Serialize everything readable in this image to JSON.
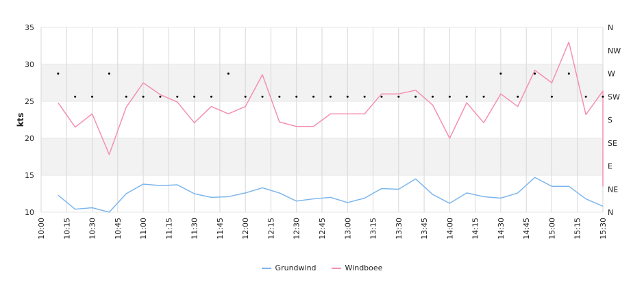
{
  "chart_data": {
    "type": "line",
    "ylabel": "kts",
    "ylim": [
      10,
      35
    ],
    "y_ticks": [
      "10",
      "15",
      "20",
      "25",
      "30",
      "35"
    ],
    "right_axis": {
      "labels": [
        "N",
        "NE",
        "E",
        "SE",
        "S",
        "SW",
        "W",
        "NW",
        "N"
      ],
      "range_degrees": [
        0,
        360
      ]
    },
    "x_labels": [
      "10:00",
      "10:15",
      "10:30",
      "10:45",
      "11:00",
      "11:15",
      "11:30",
      "11:45",
      "12:00",
      "12:15",
      "12:30",
      "12:45",
      "13:00",
      "13:15",
      "13:30",
      "13:45",
      "14:00",
      "14:15",
      "14:30",
      "14:45",
      "15:00",
      "15:15",
      "15:30"
    ],
    "x_interval_minutes": 10,
    "x": [
      "10:10",
      "10:20",
      "10:30",
      "10:40",
      "10:50",
      "11:00",
      "11:10",
      "11:20",
      "11:30",
      "11:40",
      "11:50",
      "12:00",
      "12:10",
      "12:20",
      "12:30",
      "12:40",
      "12:50",
      "13:00",
      "13:10",
      "13:20",
      "13:30",
      "13:40",
      "13:50",
      "14:00",
      "14:10",
      "14:20",
      "14:30",
      "14:40",
      "14:50",
      "15:00",
      "15:10",
      "15:20",
      "15:30"
    ],
    "series": [
      {
        "name": "Grundwind",
        "color": "#7cb5ec",
        "values": [
          12.3,
          10.4,
          10.6,
          10.0,
          12.5,
          13.8,
          13.6,
          13.7,
          12.5,
          12.0,
          12.1,
          12.6,
          13.3,
          12.6,
          11.5,
          11.8,
          12.0,
          11.3,
          11.9,
          13.2,
          13.1,
          14.5,
          12.4,
          11.2,
          12.6,
          12.1,
          11.9,
          12.6,
          14.7,
          13.5,
          13.5,
          11.8,
          10.8
        ]
      },
      {
        "name": "Windboee",
        "color": "#f48fb1",
        "values": [
          24.8,
          21.5,
          23.3,
          17.8,
          24.2,
          27.5,
          25.9,
          24.9,
          22.1,
          24.3,
          23.3,
          24.3,
          28.6,
          22.2,
          21.6,
          21.6,
          23.3,
          23.3,
          23.3,
          26.0,
          26.0,
          26.5,
          24.5,
          20.0,
          24.8,
          22.1,
          26.0,
          24.3,
          29.2,
          27.5,
          33.0,
          23.2,
          26.4
        ]
      }
    ],
    "series_last_drop": {
      "Windboee": 13.5
    },
    "wind_direction_degrees": [
      270,
      225,
      225,
      270,
      225,
      225,
      225,
      225,
      225,
      225,
      270,
      225,
      225,
      225,
      225,
      225,
      225,
      225,
      225,
      225,
      225,
      225,
      225,
      225,
      225,
      225,
      270,
      225,
      270,
      225,
      270,
      225,
      225
    ],
    "alt_bands": true,
    "grid": true,
    "legend_position": "bottom-center"
  }
}
